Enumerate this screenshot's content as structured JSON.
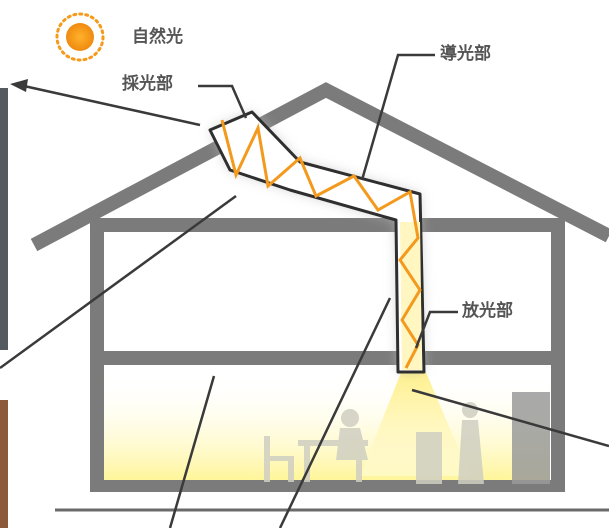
{
  "labels": {
    "sunlight": "自然光",
    "collector": "採光部",
    "duct": "導光部",
    "emitter": "放光部"
  },
  "colors": {
    "wall": "#7b7b7b",
    "sun": "#f59a1b",
    "zigzag": "#f39a1e",
    "beam_glow": "#fff3a6",
    "floor_glow": "#fff7b8",
    "pointer": "#3a3a3a",
    "label_text": "#555555"
  },
  "icons": [
    "sun-icon"
  ]
}
